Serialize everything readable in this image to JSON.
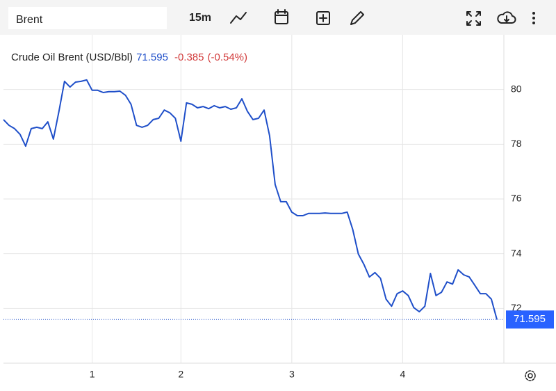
{
  "toolbar": {
    "symbol": "Brent",
    "interval": "15m"
  },
  "chart_data": {
    "type": "line",
    "title": "Crude Oil Brent (USD/Bbl)",
    "change": "-0.385",
    "change_percent": "(-0.54%)",
    "color": "#1f4fc9",
    "values": [
      78.9,
      78.69,
      78.57,
      78.36,
      77.93,
      78.57,
      78.62,
      78.57,
      78.82,
      78.19,
      79.2,
      80.3,
      80.09,
      80.27,
      80.3,
      80.35,
      79.97,
      79.97,
      79.89,
      79.92,
      79.92,
      79.94,
      79.79,
      79.46,
      78.69,
      78.62,
      78.69,
      78.9,
      78.95,
      79.25,
      79.15,
      78.95,
      78.11,
      79.51,
      79.46,
      79.33,
      79.38,
      79.3,
      79.41,
      79.33,
      79.38,
      79.28,
      79.33,
      79.66,
      79.2,
      78.9,
      78.95,
      79.25,
      78.31,
      76.53,
      75.9,
      75.9,
      75.52,
      75.39,
      75.39,
      75.47,
      75.47,
      75.47,
      75.49,
      75.47,
      75.47,
      75.47,
      75.52,
      74.88,
      73.99,
      73.61,
      73.15,
      73.31,
      73.1,
      72.34,
      72.08,
      72.54,
      72.64,
      72.47,
      72.03,
      71.88,
      72.08,
      73.28,
      72.47,
      72.59,
      72.97,
      72.89,
      73.41,
      73.23,
      73.15,
      72.85,
      72.54,
      72.54,
      72.34,
      71.595
    ],
    "xlim": [
      0,
      90.25
    ],
    "xticks": [
      {
        "value": 16,
        "label": "1"
      },
      {
        "value": 32,
        "label": "2"
      },
      {
        "value": 52,
        "label": "3"
      },
      {
        "value": 72,
        "label": "4"
      }
    ],
    "ylim": [
      70,
      82
    ],
    "yticks": [
      72,
      74,
      76,
      78,
      80
    ],
    "grid": true
  }
}
